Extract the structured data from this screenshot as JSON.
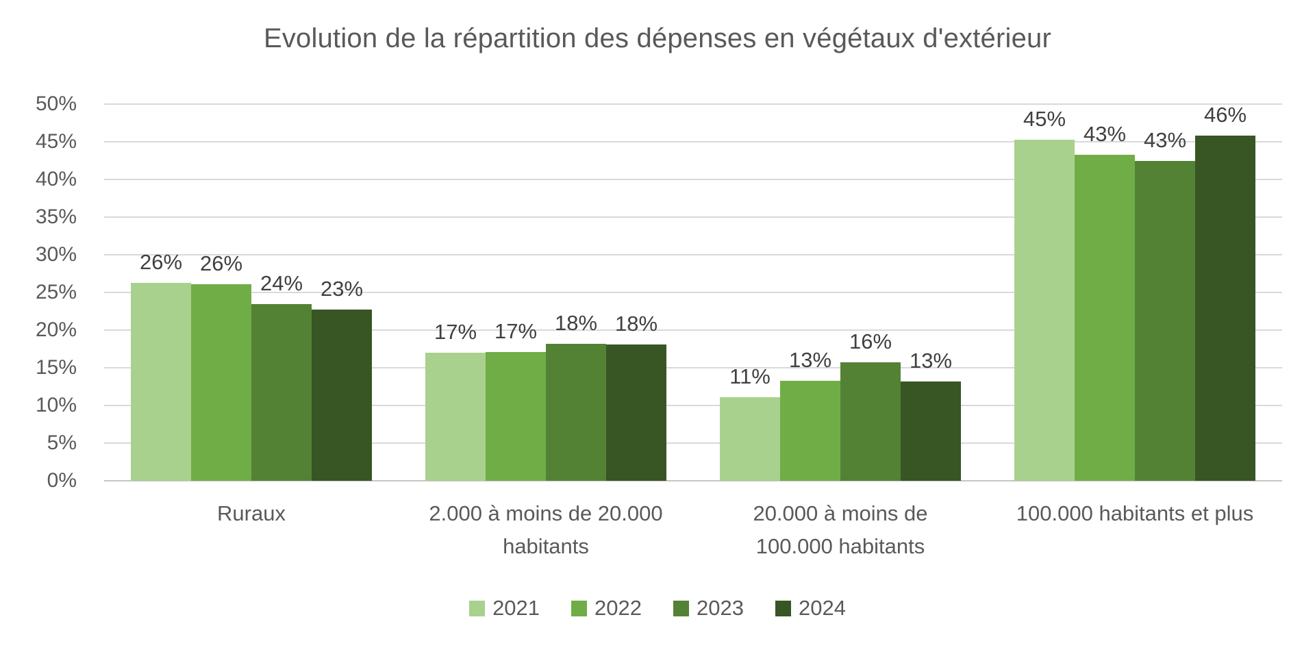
{
  "chart_data": {
    "type": "bar",
    "title": "Evolution de la répartition des dépenses en végétaux d'extérieur",
    "categories": [
      "Ruraux",
      "2.000 à moins de 20.000\nhabitants",
      "20.000 à moins de\n100.000 habitants",
      "100.000 habitants et plus"
    ],
    "series": [
      {
        "name": "2021",
        "color": "#A9D18E",
        "values": [
          26,
          17,
          11,
          45
        ],
        "values_precise": [
          26.3,
          17.0,
          11.1,
          45.3
        ],
        "labels": [
          "26%",
          "17%",
          "11%",
          "45%"
        ]
      },
      {
        "name": "2022",
        "color": "#70AD47",
        "values": [
          26,
          17,
          13,
          43
        ],
        "values_precise": [
          26.1,
          17.1,
          13.3,
          43.3
        ],
        "labels": [
          "26%",
          "17%",
          "13%",
          "43%"
        ]
      },
      {
        "name": "2023",
        "color": "#548235",
        "values": [
          24,
          18,
          16,
          43
        ],
        "values_precise": [
          23.5,
          18.2,
          15.7,
          42.5
        ],
        "labels": [
          "24%",
          "18%",
          "16%",
          "43%"
        ]
      },
      {
        "name": "2024",
        "color": "#375623",
        "values": [
          23,
          18,
          13,
          46
        ],
        "values_precise": [
          22.7,
          18.1,
          13.2,
          45.8
        ],
        "labels": [
          "23%",
          "18%",
          "13%",
          "46%"
        ]
      }
    ],
    "xlabel": "",
    "ylabel": "",
    "ylim": [
      0,
      50
    ],
    "ytick_step": 5,
    "yticks": [
      "0%",
      "5%",
      "10%",
      "15%",
      "20%",
      "25%",
      "30%",
      "35%",
      "40%",
      "45%",
      "50%"
    ],
    "grid": true,
    "legend_position": "bottom",
    "legend_entries": [
      "2021",
      "2022",
      "2023",
      "2024"
    ],
    "colors": {
      "background": "#FFFFFF",
      "title_text": "#595959",
      "axis_text": "#595959",
      "data_label_text": "#404040",
      "gridline": "#D9D9D9"
    }
  }
}
